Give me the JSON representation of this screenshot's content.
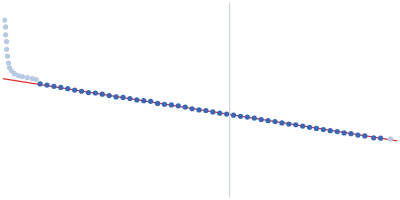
{
  "chart_data": {
    "type": "scatter",
    "xlim": [
      0,
      400
    ],
    "ylim": [
      0,
      200
    ],
    "xticks": [],
    "yticks": [],
    "grid": false,
    "tick_labels": false,
    "series": [
      {
        "type": "line",
        "color": "#c9d3e6",
        "line_style": "solid",
        "x": [
          230,
          230
        ],
        "values": [
          0,
          200
        ]
      },
      {
        "type": "scatter",
        "color": "#b8c9e3",
        "marker": "circle",
        "x": [
          2,
          3,
          3,
          4,
          4,
          5,
          6,
          7,
          9,
          12,
          16,
          20,
          25,
          30,
          34,
          393
        ],
        "values": [
          182,
          175,
          167,
          160,
          152,
          145,
          138,
          133,
          130,
          127,
          125,
          124,
          123,
          122,
          121,
          60
        ]
      },
      {
        "type": "scatter",
        "color": "#3a67b5",
        "marker": "circle",
        "x": [
          38,
          45,
          52,
          59,
          66,
          73,
          80,
          87,
          94,
          101,
          108,
          115,
          122,
          129,
          136,
          143,
          150,
          157,
          164,
          171,
          178,
          185,
          192,
          199,
          206,
          213,
          220,
          227,
          234,
          241,
          248,
          255,
          262,
          269,
          276,
          283,
          290,
          297,
          304,
          311,
          318,
          325,
          332,
          339,
          346,
          353,
          360,
          367,
          376,
          383
        ],
        "values": [
          116.5,
          115.3,
          114.0,
          112.9,
          111.6,
          110.2,
          109.0,
          107.6,
          107.2,
          106.0,
          104.5,
          103.2,
          102.6,
          101.5,
          100.1,
          99.3,
          98.6,
          96.5,
          95.6,
          94.9,
          94.0,
          92.7,
          91.0,
          89.8,
          89.2,
          87.8,
          86.5,
          85.5,
          84.4,
          83.2,
          82.5,
          81.4,
          80.0,
          78.8,
          77.9,
          76.5,
          75.3,
          74.6,
          73.2,
          71.9,
          70.8,
          69.7,
          68.5,
          67.6,
          66.2,
          65.4,
          64.0,
          63.1,
          61.2,
          60.8
        ]
      },
      {
        "type": "line",
        "color": "#d93030",
        "line_style": "solid",
        "x": [
          0,
          400
        ],
        "values": [
          122,
          58
        ]
      }
    ]
  }
}
